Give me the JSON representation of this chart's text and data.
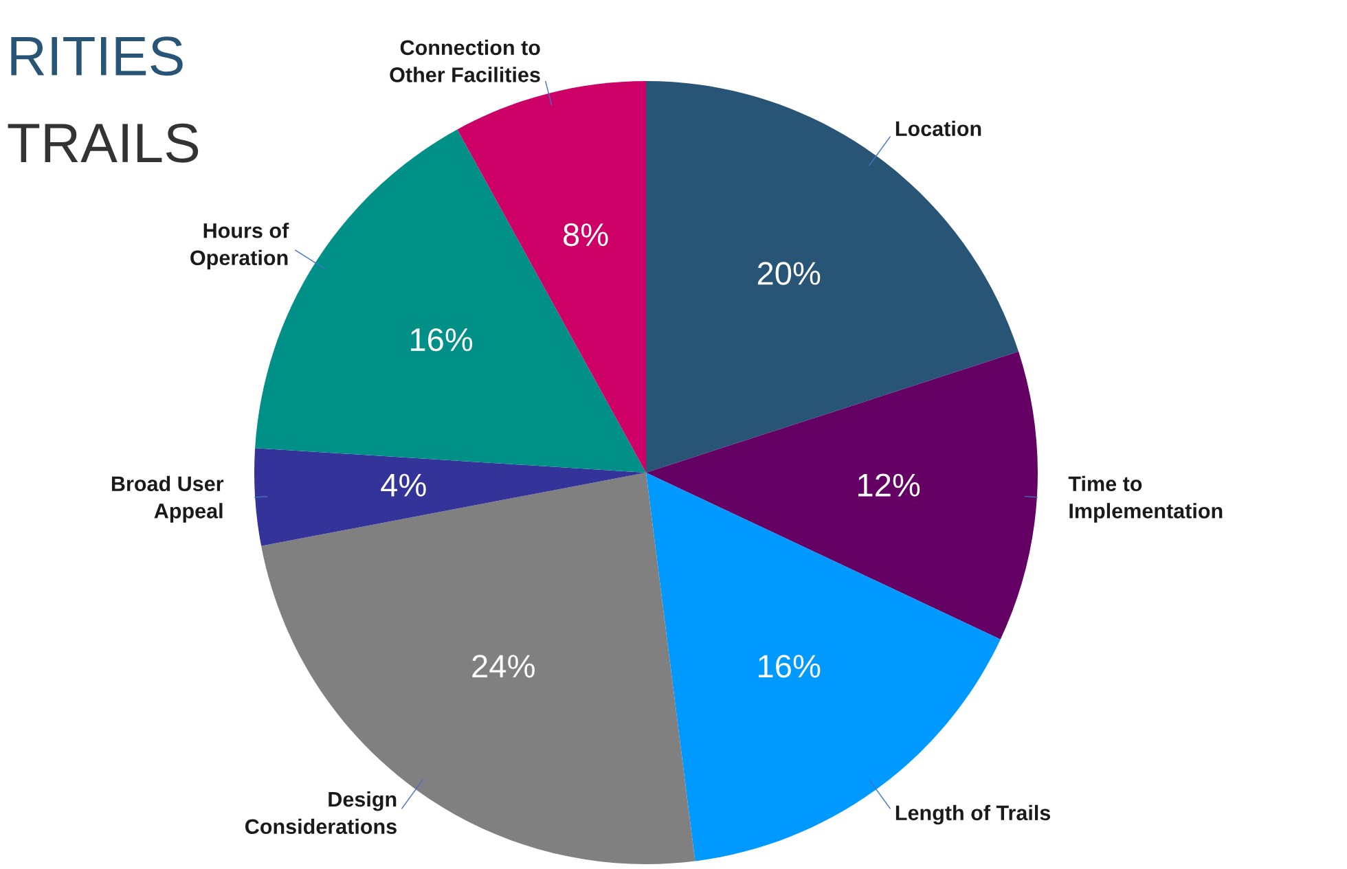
{
  "chart_data": {
    "type": "pie",
    "title": "RITIES",
    "subtitle": "TRAILS",
    "categories": [
      "Location",
      "Time to\nImplementation",
      "Length of Trails",
      "Design\nConsiderations",
      "Broad User\nAppeal",
      "Hours of\nOperation",
      "Connection to\nOther Facilities"
    ],
    "values": [
      20,
      12,
      16,
      24,
      4,
      16,
      8
    ],
    "colors": [
      "#285476",
      "#640064",
      "#0099ff",
      "#808080",
      "#333399",
      "#009087",
      "#cc0066"
    ],
    "value_labels": [
      "20%",
      "12%",
      "16%",
      "24%",
      "4%",
      "16%",
      "8%"
    ],
    "legend": false
  }
}
